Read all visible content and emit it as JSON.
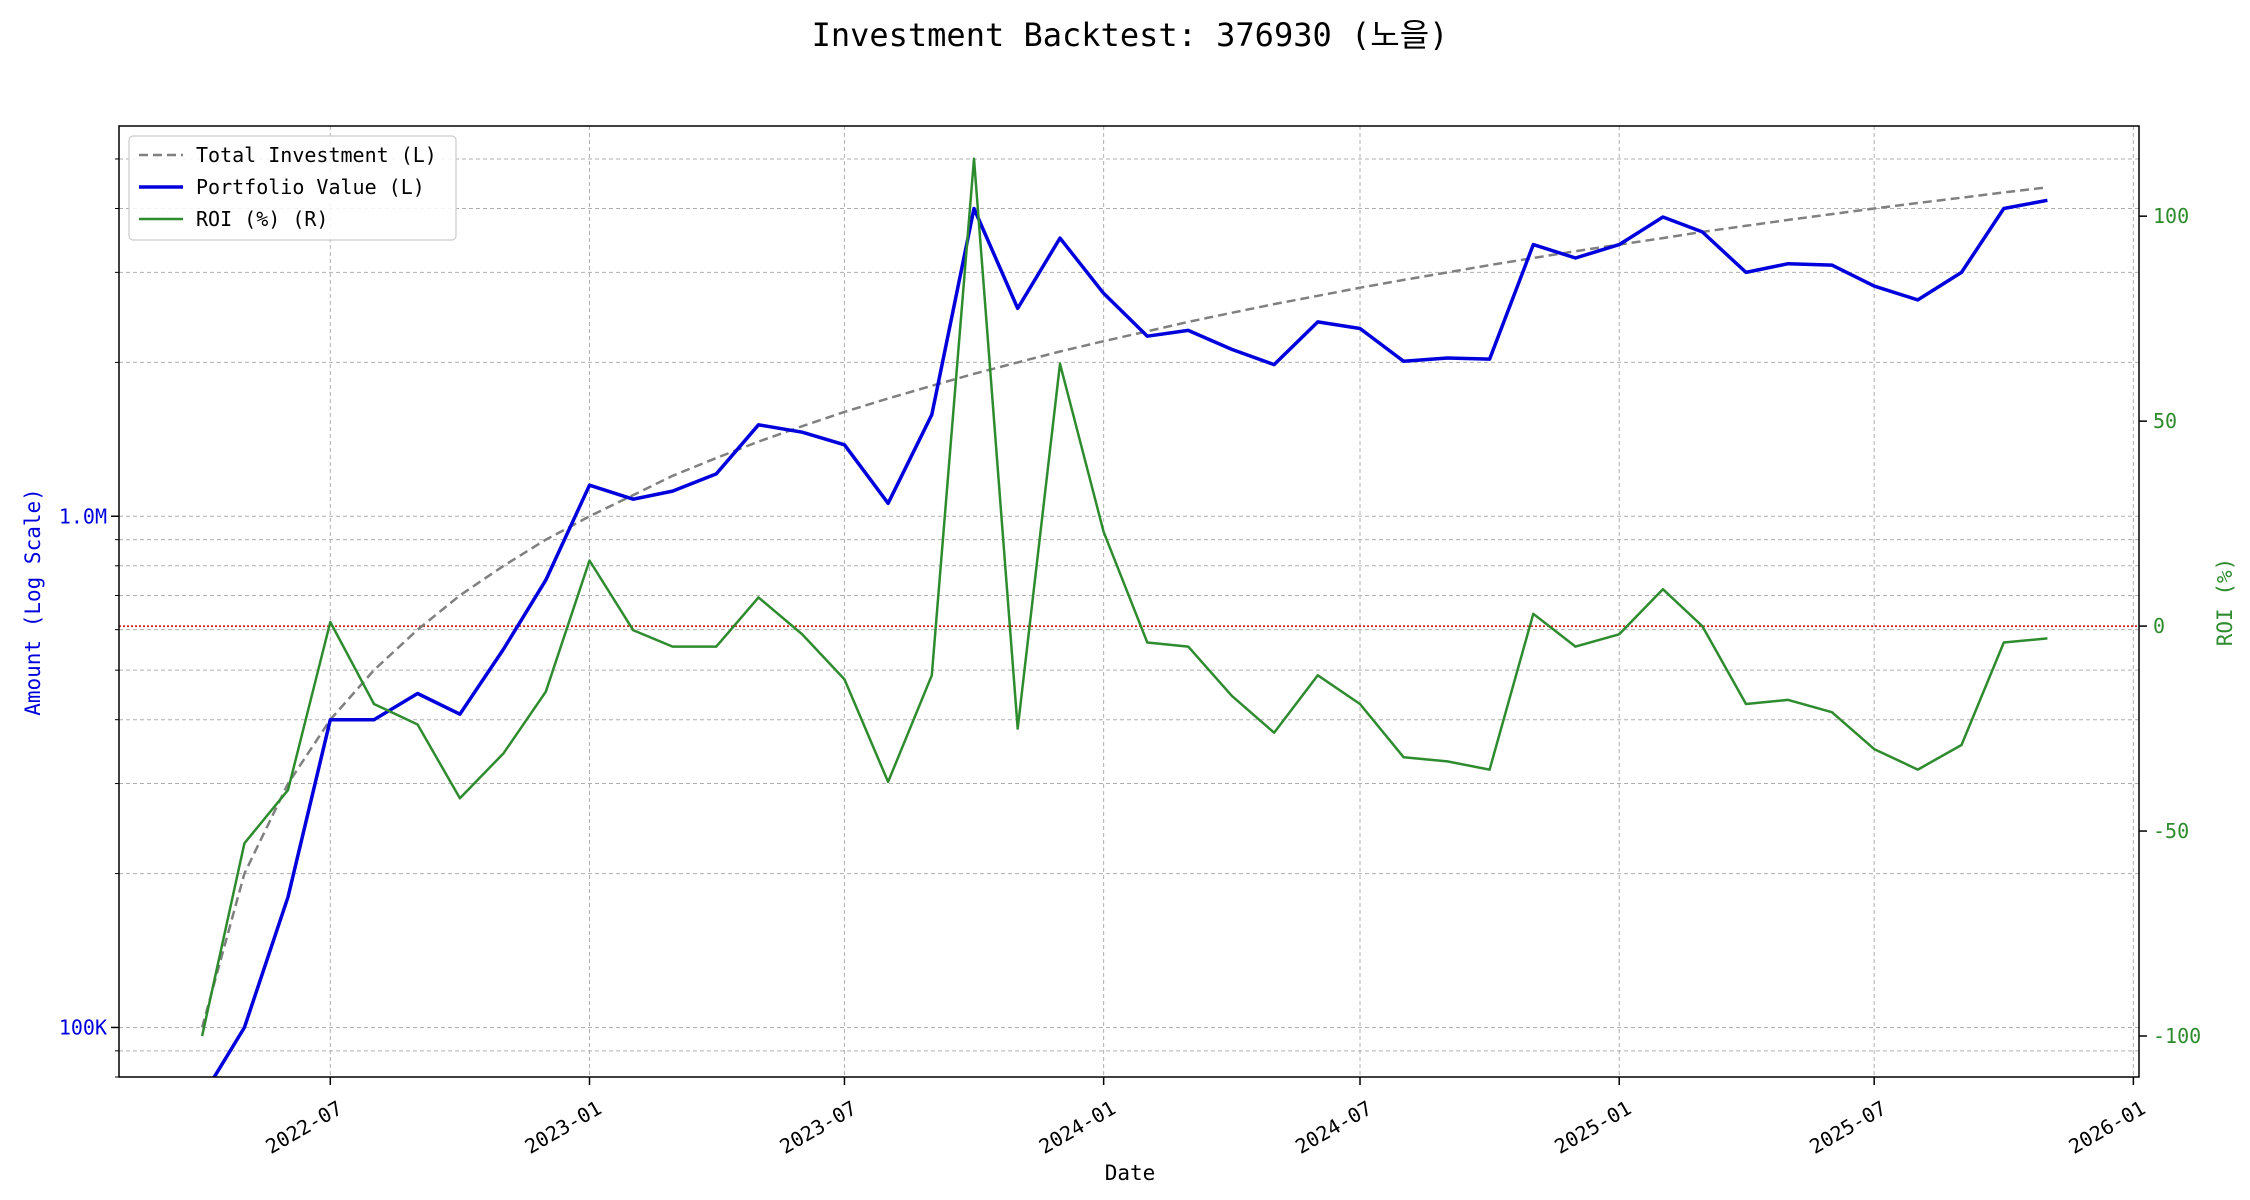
{
  "chart_data": {
    "type": "line",
    "title": "Investment Backtest: 376930 (노을)",
    "xlabel": "Date",
    "ylabel_left": "Amount (Log Scale)",
    "ylabel_right": "ROI (%)",
    "y_left_scale": "log",
    "y_left_range": [
      80000,
      5800000
    ],
    "y_right_range": [
      -110,
      122
    ],
    "x_range": [
      "2022-02-01",
      "2026-01-05"
    ],
    "x_ticks": [
      "2022-07",
      "2023-01",
      "2023-07",
      "2024-01",
      "2024-07",
      "2025-01",
      "2025-07",
      "2026-01"
    ],
    "y_left_ticks": [
      {
        "value": 100000,
        "label": "100K"
      },
      {
        "value": 1000000,
        "label": "1.0M"
      }
    ],
    "y_right_ticks": [
      -100,
      -50,
      0,
      50,
      100
    ],
    "grid": true,
    "legend_position": "top-left",
    "zero_line": {
      "value": 0,
      "axis": "right",
      "color": "#cc0000"
    },
    "dates": [
      "2022-04-01",
      "2022-05-01",
      "2022-06-01",
      "2022-07-01",
      "2022-08-01",
      "2022-09-01",
      "2022-10-01",
      "2022-11-01",
      "2022-12-01",
      "2023-01-01",
      "2023-02-01",
      "2023-03-01",
      "2023-04-01",
      "2023-05-01",
      "2023-06-01",
      "2023-07-01",
      "2023-08-01",
      "2023-09-01",
      "2023-10-01",
      "2023-11-01",
      "2023-12-01",
      "2024-01-01",
      "2024-02-01",
      "2024-03-01",
      "2024-04-01",
      "2024-05-01",
      "2024-06-01",
      "2024-07-01",
      "2024-08-01",
      "2024-09-01",
      "2024-10-01",
      "2024-11-01",
      "2024-12-01",
      "2025-01-01",
      "2025-02-01",
      "2025-03-01",
      "2025-04-01",
      "2025-05-01",
      "2025-06-01",
      "2025-07-01",
      "2025-08-01",
      "2025-09-01",
      "2025-10-01",
      "2025-11-01"
    ],
    "series": [
      {
        "name": "Total Investment (L)",
        "axis": "left",
        "color": "#808080",
        "style": "dashed",
        "values": [
          100000,
          200000,
          300000,
          400000,
          500000,
          600000,
          700000,
          800000,
          900000,
          1000000,
          1100000,
          1200000,
          1300000,
          1400000,
          1500000,
          1600000,
          1700000,
          1800000,
          1900000,
          2000000,
          2100000,
          2200000,
          2300000,
          2400000,
          2500000,
          2600000,
          2700000,
          2800000,
          2900000,
          3000000,
          3100000,
          3200000,
          3300000,
          3400000,
          3500000,
          3600000,
          3700000,
          3800000,
          3900000,
          4000000,
          4100000,
          4200000,
          4300000,
          4400000
        ]
      },
      {
        "name": "Portfolio Value (L)",
        "axis": "left",
        "color": "#0000dd",
        "style": "solid",
        "values": [
          0,
          100000,
          180000,
          400000,
          400000,
          450000,
          410000,
          550000,
          750000,
          1150000,
          1080000,
          1120000,
          1210000,
          1510000,
          1460000,
          1380000,
          1060000,
          1580000,
          4000000,
          2550000,
          3500000,
          2730000,
          2250000,
          2310000,
          2120000,
          1980000,
          2400000,
          2330000,
          2010000,
          2040000,
          2030000,
          3400000,
          3200000,
          3400000,
          3850000,
          3600000,
          3000000,
          3120000,
          3100000,
          2820000,
          2650000,
          3000000,
          4000000,
          4150000
        ]
      },
      {
        "name": "ROI (%) (R)",
        "axis": "right",
        "color": "#2e8b2e",
        "style": "solid",
        "values": [
          -100,
          -53,
          -40,
          1,
          -19,
          -24,
          -42,
          -31,
          -16,
          16,
          -1,
          -5,
          -5,
          7,
          -2,
          -13,
          -38,
          -12,
          114,
          -25,
          64,
          23,
          -4,
          -5,
          -17,
          -26,
          -12,
          -19,
          -32,
          -33,
          -35,
          3,
          -5,
          -2,
          9,
          0,
          -19,
          -18,
          -21,
          -30,
          -35,
          -29,
          -4,
          -3
        ]
      }
    ]
  }
}
